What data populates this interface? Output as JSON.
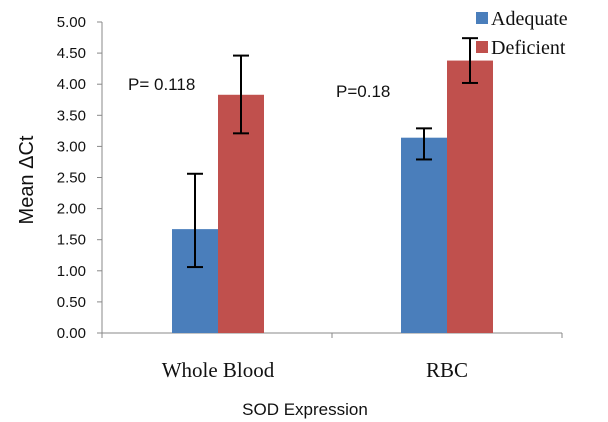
{
  "chart_data": {
    "type": "bar",
    "title": "",
    "xlabel": "SOD Expression",
    "ylabel": "Mean ΔCt",
    "ylim": [
      0,
      5
    ],
    "yticks": [
      "0.00",
      "0.50",
      "1.00",
      "1.50",
      "2.00",
      "2.50",
      "3.00",
      "3.50",
      "4.00",
      "4.50",
      "5.00"
    ],
    "categories": [
      "Whole Blood",
      "RBC"
    ],
    "series": [
      {
        "name": "Adequate",
        "color": "#4a7ebb",
        "values": [
          1.67,
          3.14
        ],
        "err_low": [
          1.06,
          2.79
        ],
        "err_high": [
          2.56,
          3.29
        ]
      },
      {
        "name": "Deficient",
        "color": "#c0504d",
        "values": [
          3.83,
          4.38
        ],
        "err_low": [
          3.21,
          4.02
        ],
        "err_high": [
          4.46,
          4.74
        ]
      }
    ],
    "annotations": [
      "P= 0.118",
      "P=0.18"
    ],
    "legend_position": "top-right",
    "grid": false
  }
}
